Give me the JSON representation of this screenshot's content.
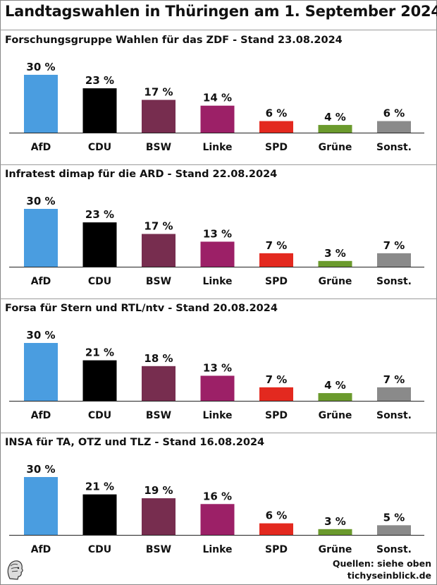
{
  "title": "Landtagswahlen in Thüringen am 1. September 2024",
  "colors": {
    "AfD": "#4a9de0",
    "CDU": "#000000",
    "BSW": "#772d4f",
    "Linke": "#9c2067",
    "SPD": "#e3291f",
    "Grüne": "#6b9a2d",
    "Sonst.": "#8a8a8a"
  },
  "chart_data": [
    {
      "type": "bar",
      "title": "Forschungsgruppe Wahlen für das ZDF - Stand 23.08.2024",
      "categories": [
        "AfD",
        "CDU",
        "BSW",
        "Linke",
        "SPD",
        "Grüne",
        "Sonst."
      ],
      "values": [
        30,
        23,
        17,
        14,
        6,
        4,
        6
      ],
      "value_labels": [
        "30 %",
        "23 %",
        "17 %",
        "14 %",
        "6 %",
        "4 %",
        "6 %"
      ],
      "ylim": [
        0,
        30
      ],
      "grid": false
    },
    {
      "type": "bar",
      "title": "Infratest dimap für die ARD - Stand 22.08.2024",
      "categories": [
        "AfD",
        "CDU",
        "BSW",
        "Linke",
        "SPD",
        "Grüne",
        "Sonst."
      ],
      "values": [
        30,
        23,
        17,
        13,
        7,
        3,
        7
      ],
      "value_labels": [
        "30 %",
        "23 %",
        "17 %",
        "13 %",
        "7 %",
        "3 %",
        "7 %"
      ],
      "ylim": [
        0,
        30
      ],
      "grid": false
    },
    {
      "type": "bar",
      "title": "Forsa für Stern und RTL/ntv - Stand 20.08.2024",
      "categories": [
        "AfD",
        "CDU",
        "BSW",
        "Linke",
        "SPD",
        "Grüne",
        "Sonst."
      ],
      "values": [
        30,
        21,
        18,
        13,
        7,
        4,
        7
      ],
      "value_labels": [
        "30 %",
        "21 %",
        "18 %",
        "13 %",
        "7 %",
        "4 %",
        "7 %"
      ],
      "ylim": [
        0,
        30
      ],
      "grid": false
    },
    {
      "type": "bar",
      "title": "INSA für TA, OTZ und TLZ - Stand 16.08.2024",
      "categories": [
        "AfD",
        "CDU",
        "BSW",
        "Linke",
        "SPD",
        "Grüne",
        "Sonst."
      ],
      "values": [
        30,
        21,
        19,
        16,
        6,
        3,
        5
      ],
      "value_labels": [
        "30 %",
        "21 %",
        "19 %",
        "16 %",
        "6 %",
        "3 %",
        "5 %"
      ],
      "ylim": [
        0,
        30
      ],
      "grid": false
    }
  ],
  "footer": {
    "source": "Quellen: siehe oben",
    "site": "tichyseinblick.de"
  }
}
